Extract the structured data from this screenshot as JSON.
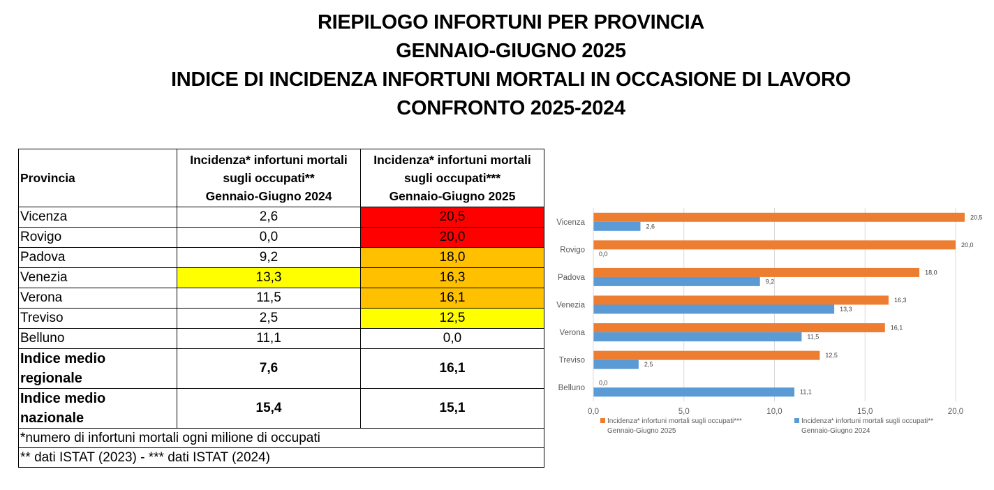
{
  "titles": [
    "RIEPILOGO INFORTUNI PER PROVINCIA",
    "GENNAIO-GIUGNO 2025",
    "INDICE DI INCIDENZA INFORTUNI MORTALI IN OCCASIONE DI LAVORO",
    "CONFRONTO 2025-2024"
  ],
  "table": {
    "header": {
      "provincia": "Provincia",
      "col2024": [
        "Incidenza* infortuni mortali",
        "sugli occupati**",
        "Gennaio-Giugno 2024"
      ],
      "col2025": [
        "Incidenza* infortuni mortali",
        "sugli occupati***",
        "Gennaio-Giugno 2025"
      ]
    },
    "rows": [
      {
        "name": "Vicenza",
        "v2024": "2,6",
        "v2025": "20,5",
        "c2024": "",
        "c2025": "red"
      },
      {
        "name": "Rovigo",
        "v2024": "0,0",
        "v2025": "20,0",
        "c2024": "",
        "c2025": "red"
      },
      {
        "name": "Padova",
        "v2024": "9,2",
        "v2025": "18,0",
        "c2024": "",
        "c2025": "orange"
      },
      {
        "name": "Venezia",
        "v2024": "13,3",
        "v2025": "16,3",
        "c2024": "yellow",
        "c2025": "orange"
      },
      {
        "name": "Verona",
        "v2024": "11,5",
        "v2025": "16,1",
        "c2024": "",
        "c2025": "orange"
      },
      {
        "name": "Treviso",
        "v2024": "2,5",
        "v2025": "12,5",
        "c2024": "",
        "c2025": "yellow"
      },
      {
        "name": "Belluno",
        "v2024": "11,1",
        "v2025": "0,0",
        "c2024": "",
        "c2025": ""
      }
    ],
    "summary": [
      {
        "name": [
          "Indice medio",
          "regionale"
        ],
        "v2024": "7,6",
        "v2025": "16,1"
      },
      {
        "name": [
          "Indice medio",
          "nazionale"
        ],
        "v2024": "15,4",
        "v2025": "15,1"
      }
    ],
    "notes": [
      "*numero di infortuni mortali ogni milione di occupati",
      "** dati ISTAT (2023) - *** dati ISTAT (2024)"
    ],
    "colors": {
      "red": "#ff0000",
      "orange": "#ffc000",
      "yellow": "#ffff00"
    }
  },
  "chart_data": {
    "type": "bar",
    "orientation": "horizontal",
    "categories": [
      "Vicenza",
      "Rovigo",
      "Padova",
      "Venezia",
      "Verona",
      "Treviso",
      "Belluno"
    ],
    "series": [
      {
        "name": "Incidenza* infortuni mortali  sugli occupati*** Gennaio-Giugno 2025",
        "legend_lines": [
          "Incidenza* infortuni mortali  sugli occupati***",
          "Gennaio-Giugno 2025"
        ],
        "color": "#ed7d31",
        "values": [
          20.5,
          20.0,
          18.0,
          16.3,
          16.1,
          12.5,
          0.0
        ],
        "labels": [
          "20,5",
          "20,0",
          "18,0",
          "16,3",
          "16,1",
          "12,5",
          "0,0"
        ]
      },
      {
        "name": "Incidenza* infortuni mortali  sugli occupati** Gennaio-Giugno 2024",
        "legend_lines": [
          "Incidenza* infortuni mortali  sugli occupati**",
          "Gennaio-Giugno 2024"
        ],
        "color": "#5b9bd5",
        "values": [
          2.6,
          0.0,
          9.2,
          13.3,
          11.5,
          2.5,
          11.1
        ],
        "labels": [
          "2,6",
          "0,0",
          "9,2",
          "13,3",
          "11,5",
          "2,5",
          "11,1"
        ]
      }
    ],
    "xlim": [
      0,
      20
    ],
    "xticks": [
      0,
      5,
      10,
      15,
      20
    ],
    "xtick_labels": [
      "0,0",
      "5,0",
      "10,0",
      "15,0",
      "20,0"
    ],
    "grid": true,
    "legend": "bottom"
  }
}
